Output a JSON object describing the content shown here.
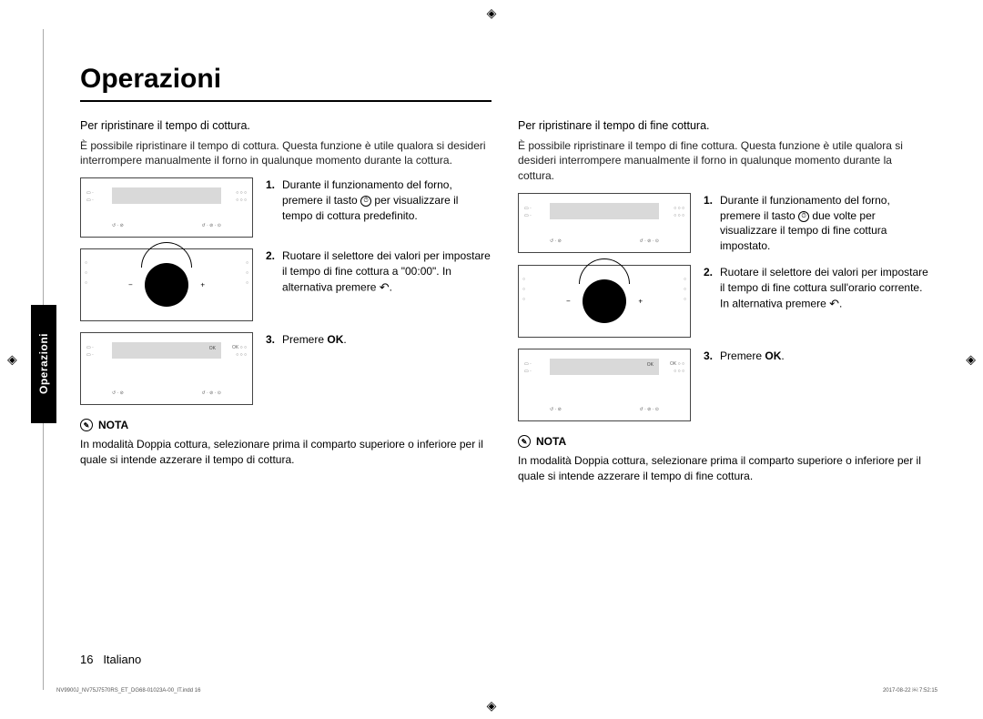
{
  "title": "Operazioni",
  "side_tab": "Operazioni",
  "left": {
    "subtitle": "Per ripristinare il tempo di cottura.",
    "intro": "È possibile ripristinare il tempo di cottura. Questa funzione è utile qualora si desideri interrompere manualmente il forno in qualunque momento durante la cottura.",
    "steps": [
      {
        "n": "1.",
        "body_a": "Durante il funzionamento del forno, premere il tasto ",
        "body_b": " per visualizzare il tempo di cottura predefinito."
      },
      {
        "n": "2.",
        "body_a": "Ruotare il selettore dei valori per impostare il tempo di fine cottura a \"00:00\". In alternativa premere ",
        "body_b": "."
      },
      {
        "n": "3.",
        "body_a": "Premere ",
        "ok": "OK",
        "body_b": "."
      }
    ],
    "nota_label": "NOTA",
    "nota_text": "In modalità Doppia cottura, selezionare prima il comparto superiore o inferiore per il quale si intende azzerare il tempo di cottura.",
    "ok_in_panel": "OK"
  },
  "right": {
    "subtitle": "Per ripristinare il tempo di fine cottura.",
    "intro": "È possibile ripristinare il tempo di fine cottura. Questa funzione è utile qualora si desideri interrompere manualmente il forno in qualunque momento durante la cottura.",
    "steps": [
      {
        "n": "1.",
        "body_a": "Durante il funzionamento del forno, premere il tasto ",
        "body_b": " due volte per visualizzare il tempo di fine cottura impostato."
      },
      {
        "n": "2.",
        "body_a": "Ruotare il selettore dei valori per impostare il tempo di fine cottura sull'orario corrente. In alternativa premere ",
        "body_b": "."
      },
      {
        "n": "3.",
        "body_a": "Premere ",
        "ok": "OK",
        "body_b": "."
      }
    ],
    "nota_label": "NOTA",
    "nota_text": "In modalità Doppia cottura, selezionare prima il comparto superiore o inferiore per il quale si intende azzerare il tempo di fine cottura.",
    "ok_in_panel": "OK"
  },
  "footer": {
    "page": "16",
    "lang": "Italiano"
  },
  "meta": {
    "left": "NV9900J_NV75J7570RS_ET_DG68-01023A-00_IT.indd   16",
    "right": "2017-08-22   ￼ 7:52:15"
  },
  "colors": {
    "text": "#000000",
    "bg": "#ffffff",
    "screen": "#d9d9d9",
    "border": "#444444",
    "tab_bg": "#000000",
    "tab_fg": "#ffffff"
  }
}
